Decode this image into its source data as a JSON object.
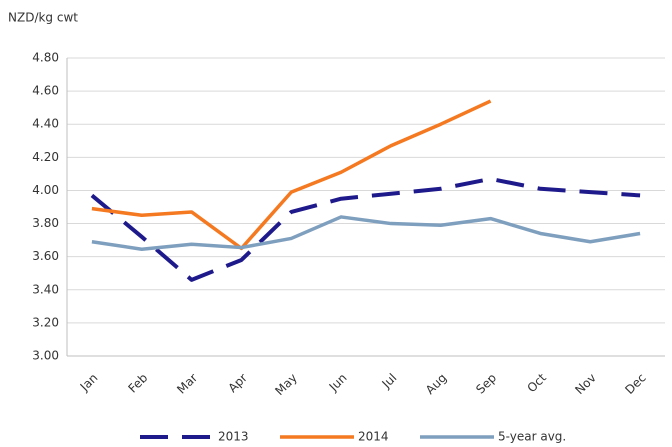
{
  "chart_data": {
    "type": "line",
    "y_axis_label": "NZD/kg cwt",
    "categories": [
      "Jan",
      "Feb",
      "Mar",
      "Apr",
      "May",
      "Jun",
      "Jul",
      "Aug",
      "Sep",
      "Oct",
      "Nov",
      "Dec"
    ],
    "series": [
      {
        "name": "2013",
        "color": "#1f1a8c",
        "dash": true,
        "values": [
          3.97,
          3.72,
          3.46,
          3.58,
          3.87,
          3.95,
          3.98,
          4.01,
          4.07,
          4.01,
          3.99,
          3.97
        ]
      },
      {
        "name": "2014",
        "color": "#f47920",
        "dash": false,
        "values": [
          3.89,
          3.85,
          3.87,
          3.65,
          3.99,
          4.11,
          4.27,
          4.4,
          4.54,
          null,
          null,
          null
        ]
      },
      {
        "name": "5-year avg.",
        "color": "#7f9fbf",
        "dash": false,
        "values": [
          3.69,
          3.645,
          3.675,
          3.655,
          3.71,
          3.84,
          3.8,
          3.79,
          3.83,
          3.74,
          3.69,
          3.74
        ]
      }
    ],
    "ylim": [
      3.0,
      4.8
    ],
    "yticks": [
      {
        "value": 3.0,
        "label": "3.00"
      },
      {
        "value": 3.2,
        "label": "3.20"
      },
      {
        "value": 3.4,
        "label": "3.40"
      },
      {
        "value": 3.6,
        "label": "3.60"
      },
      {
        "value": 3.8,
        "label": "3.80"
      },
      {
        "value": 4.0,
        "label": "4.00"
      },
      {
        "value": 4.2,
        "label": "4.20"
      },
      {
        "value": 4.4,
        "label": "4.40"
      },
      {
        "value": 4.6,
        "label": "4.60"
      },
      {
        "value": 4.8,
        "label": "4.80"
      }
    ],
    "grid": true,
    "legend": "bottom"
  }
}
